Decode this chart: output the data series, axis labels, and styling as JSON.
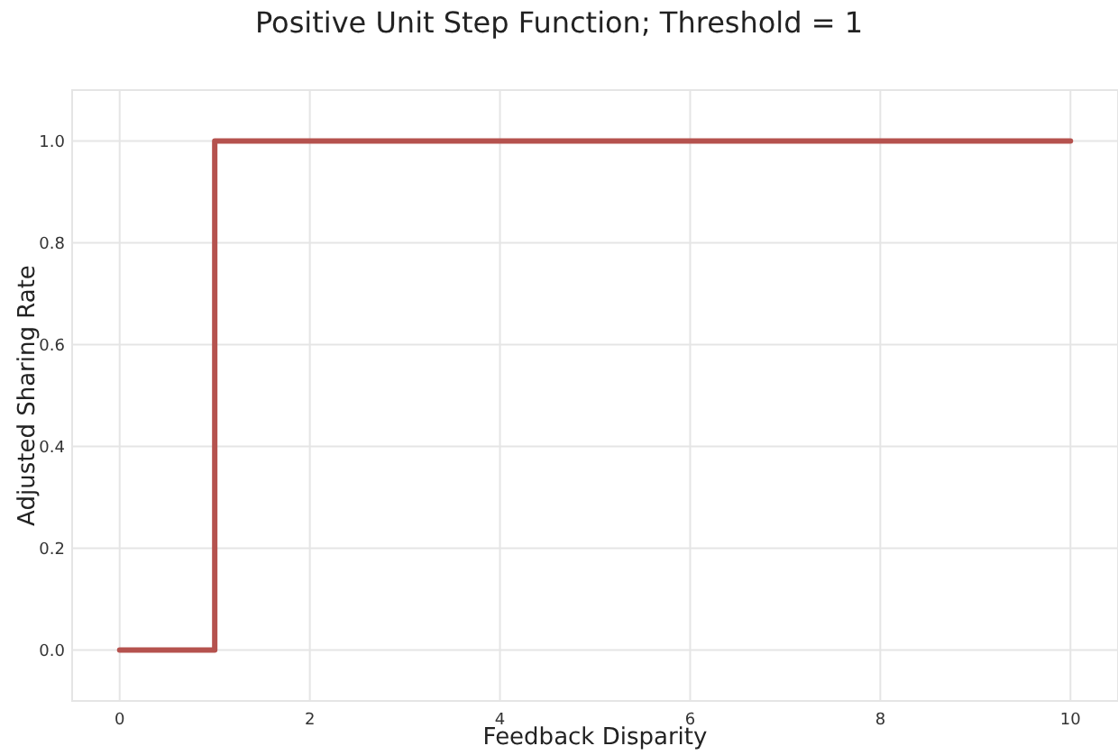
{
  "chart_data": {
    "type": "step",
    "title": "Positive Unit Step Function; Threshold = 1",
    "xlabel": "Feedback Disparity",
    "ylabel": "Adjusted Sharing Rate",
    "x": [
      0,
      1,
      10
    ],
    "series": [
      {
        "color": "#b5524e",
        "values": [
          0,
          1,
          1
        ]
      }
    ],
    "xlim": [
      -0.5,
      10.5
    ],
    "xticks": [
      0,
      2,
      4,
      6,
      8,
      10
    ],
    "ylim": [
      -0.1,
      1.1
    ],
    "yticks": [
      {
        "value": 0,
        "label": "0.0"
      },
      {
        "value": 0.2,
        "label": "0.2"
      },
      {
        "value": 0.4,
        "label": "0.4"
      },
      {
        "value": 0.6,
        "label": "0.6"
      },
      {
        "value": 0.8,
        "label": "0.8"
      },
      {
        "value": 1,
        "label": "1.0"
      }
    ],
    "grid": true,
    "line_style": "solid"
  }
}
